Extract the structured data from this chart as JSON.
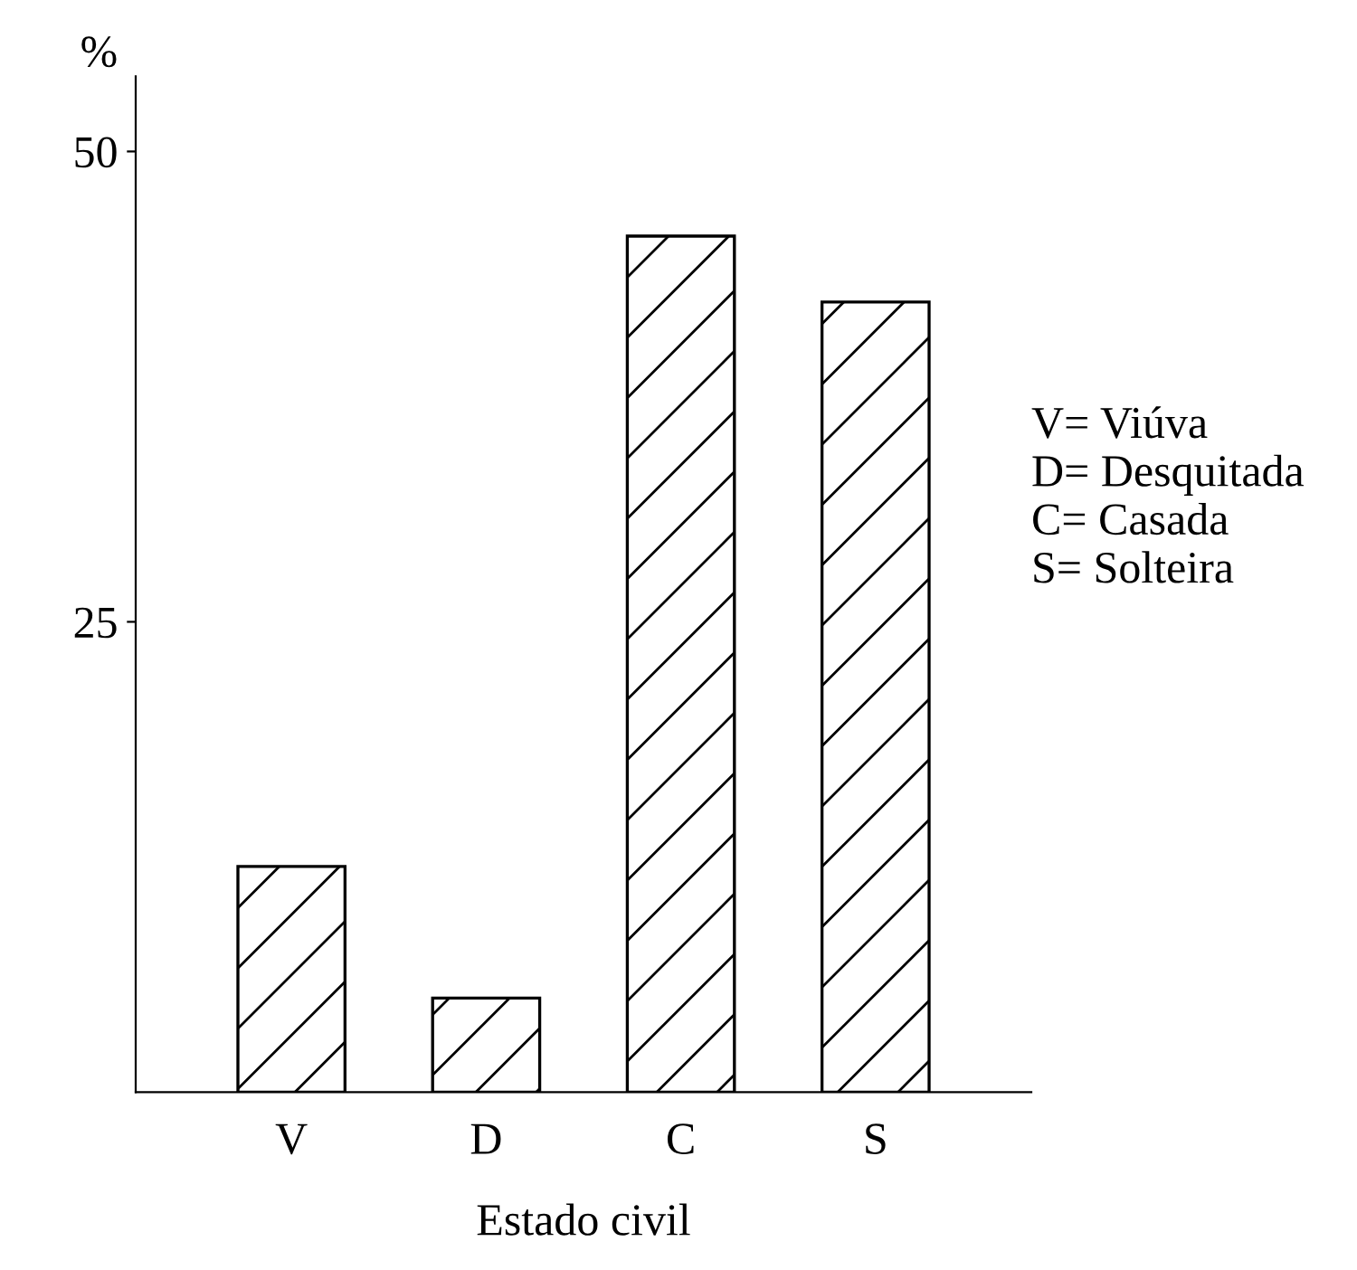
{
  "chart_data": {
    "type": "bar",
    "xlabel": "Estado civil",
    "ylabel": "%",
    "categories": [
      "V",
      "D",
      "C",
      "S"
    ],
    "values": [
      12,
      5,
      45.5,
      42
    ],
    "color": "#000000",
    "ylim": [
      0,
      54
    ],
    "yticks": [
      25,
      50
    ],
    "grid": false,
    "annotations": [
      "V= Viúva",
      "D= Desquitada",
      "C= Casada",
      "S= Solteira"
    ]
  }
}
